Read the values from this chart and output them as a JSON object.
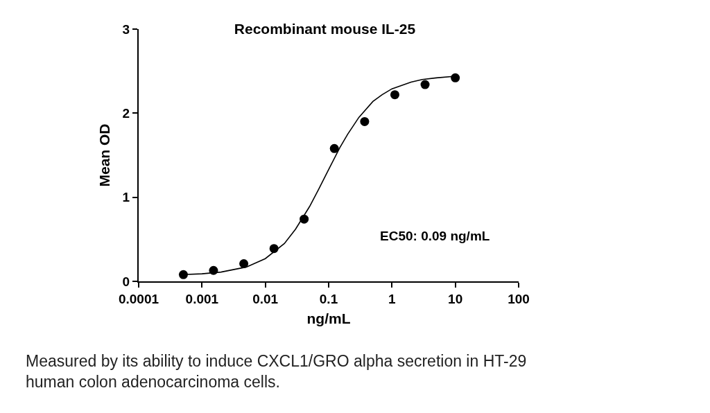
{
  "chart_data": {
    "type": "scatter",
    "title": "Recombinant mouse IL-25",
    "xlabel": "ng/mL",
    "ylabel": "Mean OD",
    "log": "x",
    "xlim": [
      0.0001,
      100
    ],
    "xticks": [
      0.0001,
      0.001,
      0.01,
      0.1,
      1,
      10,
      100
    ],
    "ylim": [
      0,
      3
    ],
    "yticks": [
      0,
      1,
      2,
      3
    ],
    "series": [
      {
        "marker": "circle",
        "color": "#000000",
        "x": [
          0.000508,
          0.00152,
          0.00457,
          0.0137,
          0.041,
          0.123,
          0.37,
          1.11,
          3.33,
          10
        ],
        "values": [
          0.08,
          0.13,
          0.21,
          0.39,
          0.74,
          1.58,
          1.9,
          2.22,
          2.34,
          2.42
        ]
      },
      {
        "type": "line",
        "marker": "none",
        "line_style": "solid",
        "color": "#000000",
        "x": [
          0.0005,
          0.001,
          0.002,
          0.005,
          0.01,
          0.02,
          0.03,
          0.05,
          0.07,
          0.1,
          0.15,
          0.2,
          0.3,
          0.5,
          0.7,
          1,
          2,
          3,
          5,
          10
        ],
        "values": [
          0.08,
          0.09,
          0.11,
          0.17,
          0.27,
          0.45,
          0.62,
          0.89,
          1.1,
          1.33,
          1.59,
          1.75,
          1.95,
          2.14,
          2.22,
          2.29,
          2.37,
          2.4,
          2.42,
          2.44
        ]
      }
    ],
    "annotations": [
      "EC50: 0.09 ng/mL",
      "Measured by its ability to induce CXCL1/GRO alpha secretion in HT-29\nhuman colon adenocarcinoma cells."
    ]
  }
}
